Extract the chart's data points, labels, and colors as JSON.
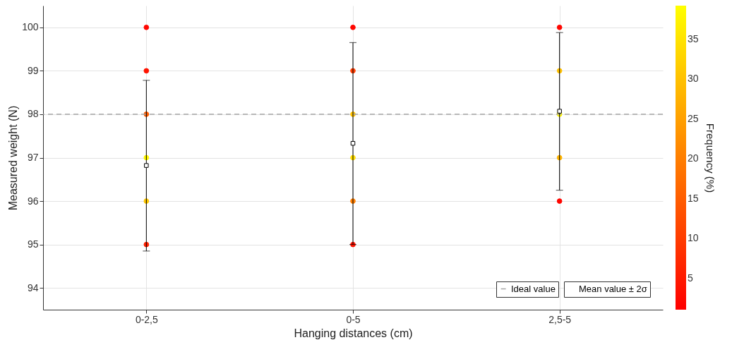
{
  "chart_data": {
    "type": "scatter",
    "xlabel": "Hanging distances (cm)",
    "ylabel": "Measured weight (N)",
    "clabel": "Frequency (%)",
    "categories": [
      "0-2,5",
      "0-5",
      "2,5-5"
    ],
    "series": [
      {
        "marker": "circle",
        "x": [
          "0-2,5",
          "0-2,5",
          "0-2,5",
          "0-2,5",
          "0-2,5",
          "0-2,5",
          "0-5",
          "0-5",
          "0-5",
          "0-5",
          "0-5",
          "0-5",
          "2,5-5",
          "2,5-5",
          "2,5-5",
          "2,5-5",
          "2,5-5"
        ],
        "values": [
          100,
          99,
          98,
          97,
          96,
          95,
          100,
          99,
          98,
          97,
          96,
          95,
          100,
          99,
          98,
          97,
          96
        ],
        "cvalues": [
          2,
          4,
          15,
          38,
          31,
          6,
          2,
          10,
          30,
          34,
          20,
          4,
          2,
          30,
          38,
          28,
          2
        ],
        "colors": [
          "#ff0600",
          "#ff1300",
          "#ff5d00",
          "#fff700",
          "#ffc800",
          "#ff2100",
          "#ff0600",
          "#ff3c00",
          "#ffc100",
          "#ffdc00",
          "#ff7f00",
          "#ff1300",
          "#ff0600",
          "#ffc100",
          "#fff700",
          "#ffb400",
          "#ff0600"
        ]
      },
      {
        "name": "Mean value ± 2σ",
        "color": "#000000",
        "marker": "square",
        "x": [
          "0-2,5",
          "0-5",
          "2,5-5"
        ],
        "values": [
          96.82,
          97.33,
          98.07
        ],
        "errors": [
          [
            94.85,
            98.78
          ],
          [
            95.0,
            99.65
          ],
          [
            96.25,
            99.88
          ]
        ]
      }
    ],
    "ref_lines": [
      {
        "axis": "y",
        "value": 98,
        "label": "Ideal value",
        "line_style": "dashed",
        "color": "#a6a6a6"
      }
    ],
    "ylim": [
      93.5,
      100.5
    ],
    "yticks": [
      94,
      95,
      96,
      97,
      98,
      99,
      100
    ],
    "clim": [
      1.1,
      39.2
    ],
    "cticks": [
      5,
      10,
      15,
      20,
      25,
      30,
      35
    ],
    "grid": true,
    "legend": "bottom right"
  }
}
